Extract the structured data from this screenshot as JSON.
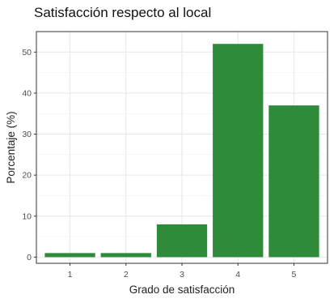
{
  "chart_data": {
    "type": "bar",
    "title": "Satisfacción respecto al local",
    "xlabel": "Grado de satisfacción",
    "ylabel": "Porcentaje (%)",
    "categories": [
      "1",
      "2",
      "3",
      "4",
      "5"
    ],
    "values": [
      1,
      1,
      8,
      52,
      37
    ],
    "ylim": [
      -1.5,
      55
    ],
    "yticks": [
      0,
      10,
      20,
      30,
      40,
      50
    ],
    "bar_color": "#2e8b3a",
    "grid": true,
    "legend": "none"
  }
}
